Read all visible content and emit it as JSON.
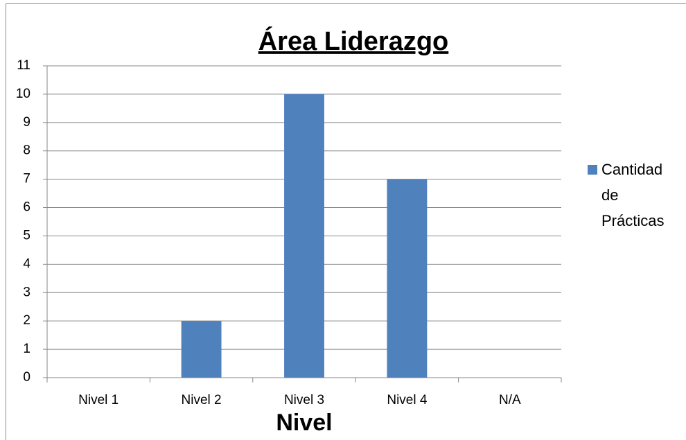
{
  "chart_data": {
    "type": "bar",
    "title": "Área Liderazgo",
    "x_label": "Nivel",
    "categories": [
      "Nivel 1",
      "Nivel 2",
      "Nivel 3",
      "Nivel 4",
      "N/A"
    ],
    "series": [
      {
        "name": "Cantidad de Prácticas",
        "color": "#4f81bd",
        "values": [
          0,
          2,
          10,
          7,
          0
        ]
      }
    ],
    "ylim": [
      0,
      11
    ],
    "yticks": [
      0,
      1,
      2,
      3,
      4,
      5,
      6,
      7,
      8,
      9,
      10,
      11
    ],
    "grid": true,
    "legend": "right"
  }
}
